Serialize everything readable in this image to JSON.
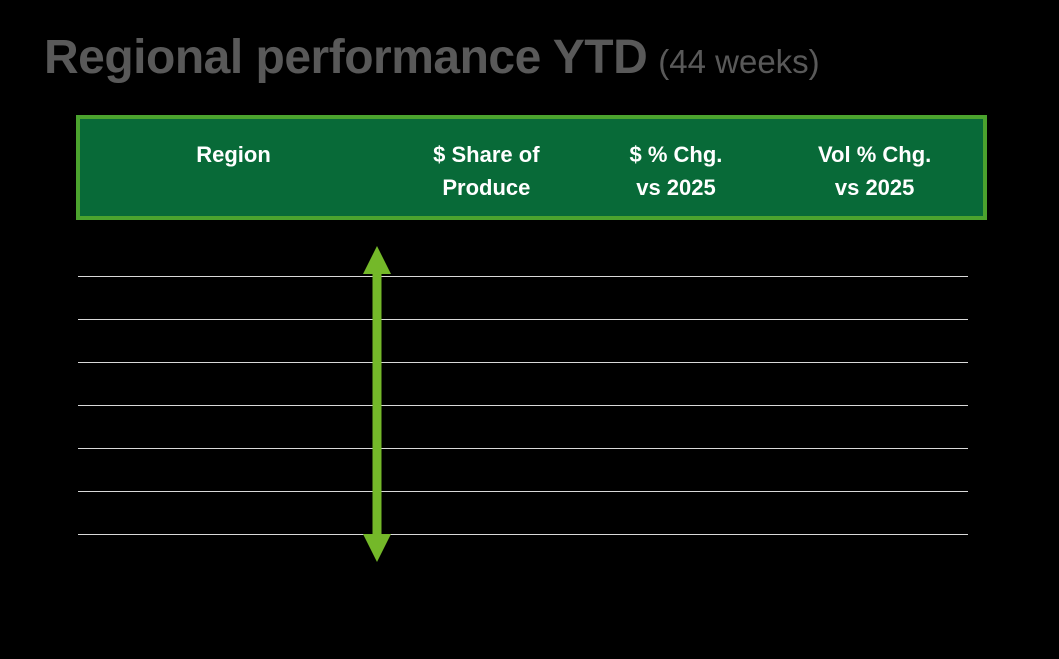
{
  "slide": {
    "background": "#000000"
  },
  "title": {
    "main": "Regional performance YTD",
    "suffix": "(44 weeks)"
  },
  "colors": {
    "background": "#000000",
    "title_text": "#595959",
    "header_fill": "#086A38",
    "header_border": "#4BA32E",
    "header_text": "#FFFFFF",
    "gridline": "#D9D9D9",
    "arrow": "#74B829"
  },
  "table": {
    "header": {
      "columns": [
        {
          "line1": "Region",
          "line2": ""
        },
        {
          "line1": "$ Share of",
          "line2": "Produce"
        },
        {
          "line1": "$ % Chg.",
          "line2": "vs 2025"
        },
        {
          "line1": "Vol % Chg.",
          "line2": "vs 2025"
        }
      ]
    },
    "body": {
      "row_separator_count": 7
    }
  },
  "annotation": {
    "arrow_icon": "vertical-double-arrow"
  }
}
